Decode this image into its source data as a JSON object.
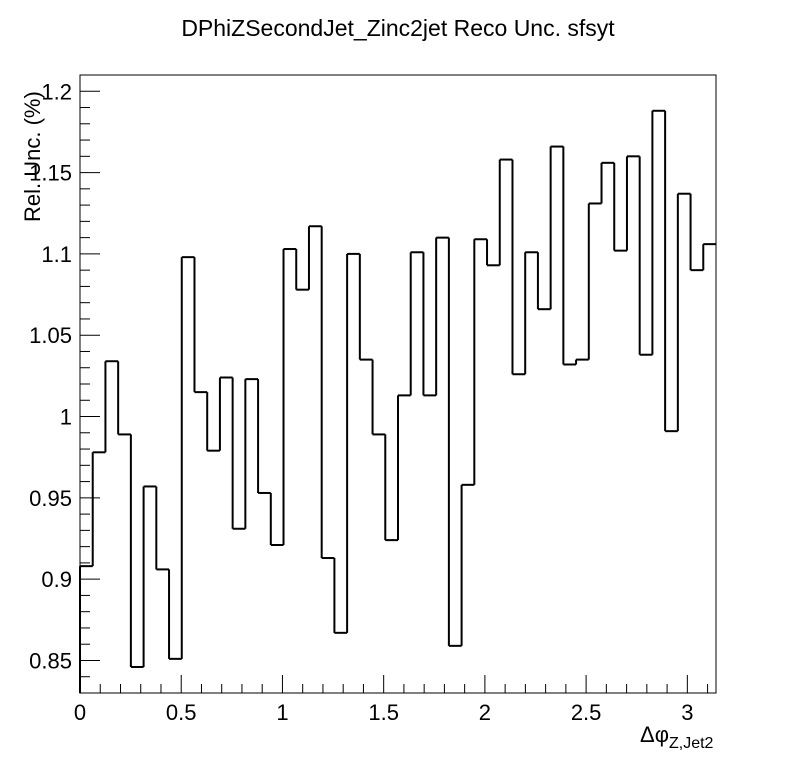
{
  "chart_data": {
    "type": "line",
    "style": "step-histogram",
    "title": "DPhiZSecondJet_Zinc2jet Reco Unc. sfsyt",
    "xlabel": "Δφ",
    "xlabel_sub": "Z,Jet2",
    "ylabel": "Rel. Unc. (%)",
    "xlim": [
      0,
      3.1416
    ],
    "ylim": [
      0.83,
      1.21
    ],
    "xticks": [
      0,
      0.5,
      1,
      1.5,
      2,
      2.5,
      3
    ],
    "xtick_labels": [
      "0",
      "0.5",
      "1",
      "1.5",
      "2",
      "2.5",
      "3"
    ],
    "yticks": [
      0.85,
      0.9,
      0.95,
      1.0,
      1.05,
      1.1,
      1.15,
      1.2
    ],
    "ytick_labels": [
      "0.85",
      "0.9",
      "0.95",
      "1",
      "1.05",
      "1.1",
      "1.15",
      "1.2"
    ],
    "grid": false,
    "legend": "none",
    "series_color": "#000000",
    "n_bins": 50,
    "bin_edges_start": 0,
    "bin_edges_end": 3.1416,
    "values": [
      0.908,
      0.978,
      1.034,
      0.989,
      0.846,
      0.957,
      0.906,
      0.851,
      1.098,
      1.015,
      0.979,
      1.024,
      0.931,
      1.023,
      0.953,
      0.921,
      1.103,
      1.078,
      1.117,
      0.913,
      0.867,
      1.1,
      1.035,
      0.989,
      0.924,
      1.013,
      1.101,
      1.013,
      1.11,
      0.859,
      0.958,
      1.109,
      1.093,
      1.158,
      1.026,
      1.101,
      1.066,
      1.166,
      1.032,
      1.035,
      1.131,
      1.156,
      1.102,
      1.16,
      1.038,
      1.188,
      0.991,
      1.137,
      1.09,
      1.106
    ]
  }
}
